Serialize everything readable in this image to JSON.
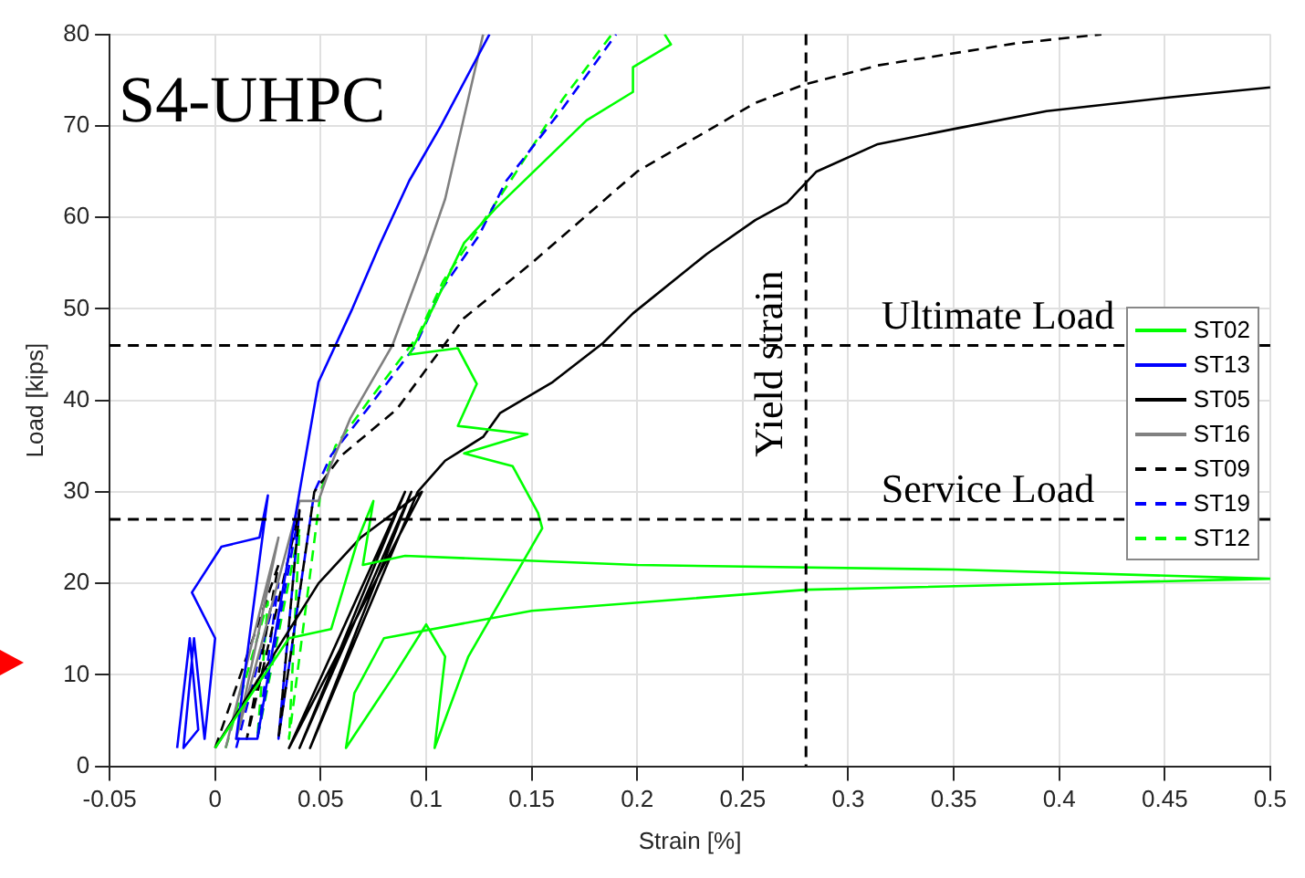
{
  "chart_data": {
    "type": "line",
    "title": "S4-UHPC",
    "xlabel": "Strain [%]",
    "ylabel": "Load [kips]",
    "xlim": [
      -0.05,
      0.5
    ],
    "xticks": [
      -0.05,
      0,
      0.05,
      0.1,
      0.15,
      0.2,
      0.25,
      0.3,
      0.35,
      0.4,
      0.45,
      0.5
    ],
    "ylim": [
      0,
      80
    ],
    "yticks": [
      0,
      10,
      20,
      30,
      40,
      50,
      60,
      70,
      80
    ],
    "grid": true,
    "legend": "right",
    "marker": "none",
    "series": [
      {
        "name": "ST02",
        "color": "#00ff00",
        "line_style": "solid",
        "x": [
          0.0,
          0.035,
          0.055,
          0.068,
          0.075,
          0.07,
          0.09,
          0.2,
          0.35,
          0.5,
          0.28,
          0.15,
          0.08,
          0.066,
          0.062,
          0.085,
          0.1,
          0.109,
          0.104,
          0.12,
          0.14,
          0.155,
          0.153,
          0.141,
          0.118,
          0.148,
          0.115,
          0.124,
          0.115,
          0.092,
          0.103,
          0.118,
          0.133,
          0.176,
          0.198,
          0.198,
          0.216,
          0.213
        ],
        "values": [
          2,
          14,
          15,
          25,
          29,
          22,
          23,
          22,
          21.5,
          20.5,
          19.3,
          17,
          14,
          8,
          2,
          10,
          15.5,
          12,
          2,
          12,
          20,
          26,
          27.7,
          32.8,
          34.2,
          36.3,
          37.2,
          41.8,
          45.7,
          45,
          50,
          57.2,
          61,
          70.6,
          73.7,
          76.4,
          78.9,
          80
        ]
      },
      {
        "name": "ST13",
        "color": "#0000ff",
        "line_style": "solid",
        "x": [
          -0.018,
          -0.012,
          -0.008,
          -0.015,
          -0.01,
          -0.005,
          0.0,
          -0.011,
          0.003,
          0.021,
          0.025,
          0.01,
          0.02,
          0.04,
          0.049,
          0.065,
          0.078,
          0.092,
          0.107,
          0.13
        ],
        "values": [
          2,
          14,
          4,
          2,
          14,
          3,
          14,
          19,
          24,
          25,
          29.6,
          3,
          3,
          30,
          42,
          50,
          57,
          64,
          70,
          80
        ]
      },
      {
        "name": "ST05",
        "color": "#000000",
        "line_style": "solid",
        "x": [
          0.0,
          0.049,
          0.069,
          0.098,
          0.035,
          0.09,
          0.04,
          0.093,
          0.045,
          0.096,
          0.109,
          0.127,
          0.135,
          0.16,
          0.184,
          0.198,
          0.233,
          0.256,
          0.271,
          0.285,
          0.314,
          0.351,
          0.394,
          0.452,
          0.5
        ],
        "values": [
          2,
          20,
          25,
          30,
          2,
          30,
          2,
          30,
          2,
          30,
          33.4,
          36,
          38.6,
          42,
          46.3,
          49.5,
          56,
          59.7,
          61.6,
          65,
          68,
          69.7,
          71.6,
          73.1,
          74.2
        ]
      },
      {
        "name": "ST16",
        "color": "#808080",
        "line_style": "solid",
        "x": [
          0.005,
          0.03,
          0.01,
          0.04,
          0.049,
          0.055,
          0.064,
          0.084,
          0.1,
          0.109,
          0.118,
          0.127
        ],
        "values": [
          2,
          25,
          3,
          29,
          29,
          33,
          38,
          46,
          56,
          62,
          71,
          80
        ]
      },
      {
        "name": "ST09",
        "color": "#000000",
        "line_style": "dashed",
        "x": [
          0.0,
          0.03,
          0.015,
          0.04,
          0.03,
          0.047,
          0.06,
          0.086,
          0.118,
          0.15,
          0.2,
          0.256,
          0.279,
          0.314,
          0.379,
          0.42
        ],
        "values": [
          2,
          22,
          3,
          28,
          3,
          30,
          34,
          39,
          49,
          55,
          65,
          72.5,
          74.5,
          76.6,
          79,
          80
        ]
      },
      {
        "name": "ST19",
        "color": "#0000ff",
        "line_style": "dashed",
        "x": [
          0.01,
          0.03,
          0.02,
          0.04,
          0.03,
          0.047,
          0.055,
          0.072,
          0.095,
          0.107,
          0.125,
          0.138,
          0.165,
          0.19
        ],
        "values": [
          2,
          20,
          3,
          28,
          3,
          30,
          34,
          39,
          46,
          52,
          58,
          64,
          72,
          80
        ]
      },
      {
        "name": "ST12",
        "color": "#00ff00",
        "line_style": "dashed",
        "x": [
          0.005,
          0.025,
          0.02,
          0.04,
          0.035,
          0.05,
          0.057,
          0.073,
          0.096,
          0.108,
          0.14,
          0.165,
          0.188
        ],
        "values": [
          2,
          18,
          3,
          26,
          3,
          30,
          35,
          40,
          47,
          53,
          64,
          73,
          80
        ]
      }
    ],
    "ref_lines": [
      {
        "axis": "y",
        "value": 46,
        "label": "Ultimate Load",
        "color": "#000000",
        "line_style": "dashed"
      },
      {
        "axis": "y",
        "value": 27,
        "label": "Service Load",
        "color": "#000000",
        "line_style": "dashed"
      },
      {
        "axis": "x",
        "value": 0.28,
        "label": "Yield strain",
        "color": "#000000",
        "line_style": "dashed"
      }
    ]
  }
}
